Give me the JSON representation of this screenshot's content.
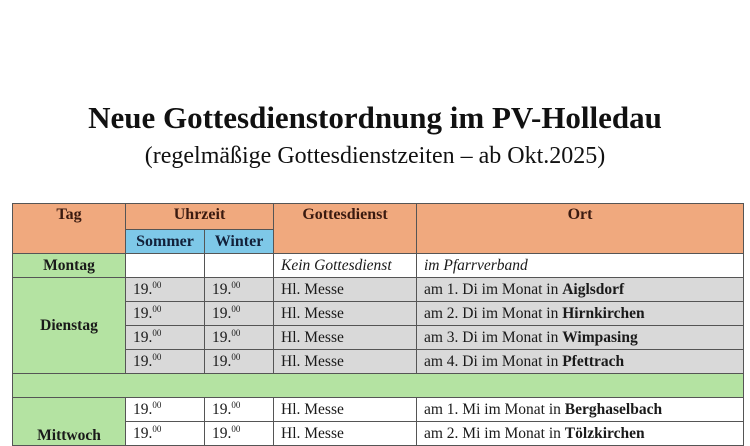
{
  "title": "Neue Gottesdienstordnung im PV-Holledau",
  "subtitle": "(regelmäßige Gottesdienstzeiten – ab Okt.2025)",
  "table": {
    "headers": {
      "tag": "Tag",
      "uhrzeit": "Uhrzeit",
      "sommer": "Sommer",
      "winter": "Winter",
      "gottesdienst": "Gottesdienst",
      "ort": "Ort"
    },
    "montag": {
      "day": "Montag",
      "gottesdienst": "Kein Gottesdienst",
      "ort": "im Pfarrverband"
    },
    "dienstag": {
      "day": "Dienstag",
      "rows": [
        {
          "sommer": "19.",
          "sommer_sup": "00",
          "winter": "19.",
          "winter_sup": "00",
          "gottesdienst": "Hl. Messe",
          "ort": "am 1. Di im Monat in ",
          "place": "Aiglsdorf"
        },
        {
          "sommer": "19.",
          "sommer_sup": "00",
          "winter": "19.",
          "winter_sup": "00",
          "gottesdienst": "Hl. Messe",
          "ort": "am 2. Di im Monat in ",
          "place": "Hirnkirchen"
        },
        {
          "sommer": "19.",
          "sommer_sup": "00",
          "winter": "19.",
          "winter_sup": "00",
          "gottesdienst": "Hl. Messe",
          "ort": "am 3. Di im Monat in ",
          "place": "Wimpasing"
        },
        {
          "sommer": "19.",
          "sommer_sup": "00",
          "winter": "19.",
          "winter_sup": "00",
          "gottesdienst": "Hl. Messe",
          "ort": "am 4. Di im Monat in ",
          "place": "Pfettrach"
        }
      ]
    },
    "mittwoch": {
      "day": "Mittwoch",
      "rows": [
        {
          "sommer": "19.",
          "sommer_sup": "00",
          "winter": "19.",
          "winter_sup": "00",
          "gottesdienst": "Hl. Messe",
          "ort": "am 1. Mi im Monat in ",
          "place": "Berghaselbach"
        },
        {
          "sommer": "19.",
          "sommer_sup": "00",
          "winter": "19.",
          "winter_sup": "00",
          "gottesdienst": "Hl. Messe",
          "ort": "am 2. Mi im Monat in ",
          "place": "Tölzkirchen"
        }
      ]
    }
  },
  "colors": {
    "header": "#f0a97e",
    "subheader": "#7ec8e8",
    "day": "#b4e3a2",
    "grey": "#d9d9d9"
  }
}
